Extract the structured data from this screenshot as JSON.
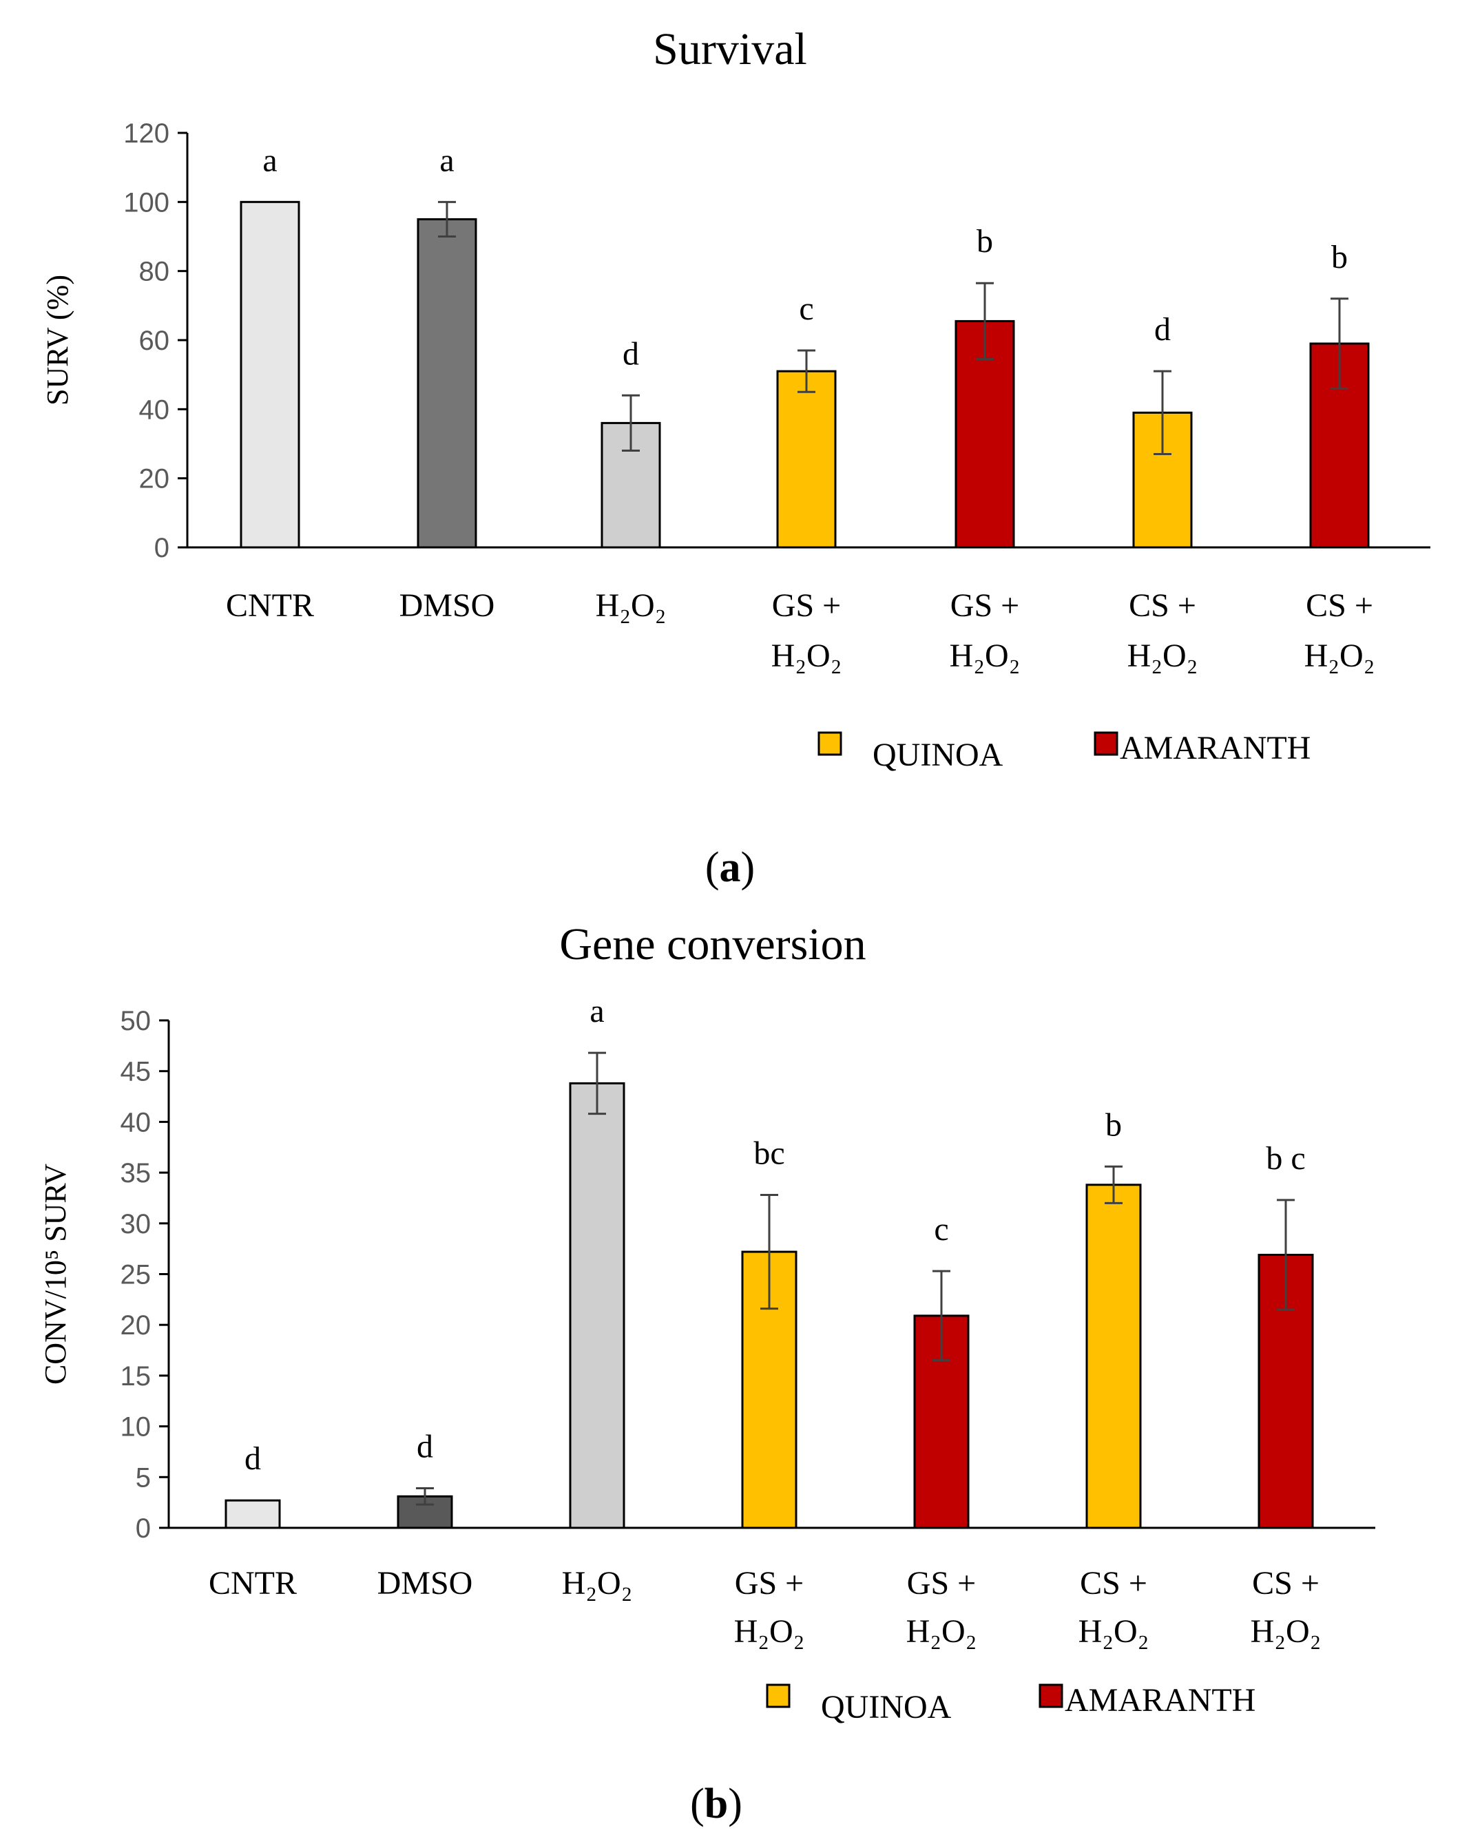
{
  "chart_data": [
    {
      "type": "bar",
      "title": "Survival",
      "ylabel": "SURV (%)",
      "ylim": [
        0,
        120
      ],
      "yticks": [
        0,
        20,
        40,
        60,
        80,
        100,
        120
      ],
      "categories": [
        [
          "CNTR"
        ],
        [
          "DMSO"
        ],
        [
          "H₂O₂"
        ],
        [
          "GS  +",
          "H₂O₂"
        ],
        [
          "GS +",
          "H₂O₂"
        ],
        [
          "CS +",
          "H₂O₂"
        ],
        [
          "CS +",
          "H₂O₂"
        ]
      ],
      "values": [
        100,
        95,
        36,
        51,
        65.5,
        39,
        59
      ],
      "errors": [
        0,
        5,
        8,
        6,
        11,
        12,
        13
      ],
      "significance": [
        "a",
        "a",
        "d",
        "c",
        "b",
        "d",
        "b"
      ],
      "bar_colors": [
        "#e7e7e7",
        "#767676",
        "#cfcfcf",
        "#ffc000",
        "#c00000",
        "#ffc000",
        "#c00000"
      ],
      "legend": [
        {
          "name": "QUINOA",
          "color": "#ffc000"
        },
        {
          "name": "AMARANTH",
          "color": "#c00000"
        }
      ],
      "panel_label": "a"
    },
    {
      "type": "bar",
      "title": "Gene conversion",
      "ylabel": "CONV/10⁵ SURV",
      "ylim": [
        0,
        50
      ],
      "yticks": [
        0,
        5,
        10,
        15,
        20,
        25,
        30,
        35,
        40,
        45,
        50
      ],
      "categories": [
        [
          "CNTR"
        ],
        [
          "DMSO"
        ],
        [
          "H₂O₂"
        ],
        [
          "GS  +",
          "H₂O₂"
        ],
        [
          "GS +",
          "H₂O₂"
        ],
        [
          "CS +",
          "H₂O₂"
        ],
        [
          "CS +",
          "H₂O₂"
        ]
      ],
      "values": [
        2.7,
        3.1,
        43.8,
        27.2,
        20.9,
        33.8,
        26.9
      ],
      "errors": [
        0,
        0.8,
        3,
        5.6,
        4.4,
        1.8,
        5.4
      ],
      "significance": [
        "d",
        "d",
        "a",
        "bc",
        "c",
        "b",
        "b c"
      ],
      "bar_colors": [
        "#e7e7e7",
        "#595959",
        "#cfcfcf",
        "#ffc000",
        "#c00000",
        "#ffc000",
        "#c00000"
      ],
      "legend": [
        {
          "name": "QUINOA",
          "color": "#ffc000"
        },
        {
          "name": "AMARANTH",
          "color": "#c00000"
        }
      ],
      "panel_label": "b"
    }
  ]
}
